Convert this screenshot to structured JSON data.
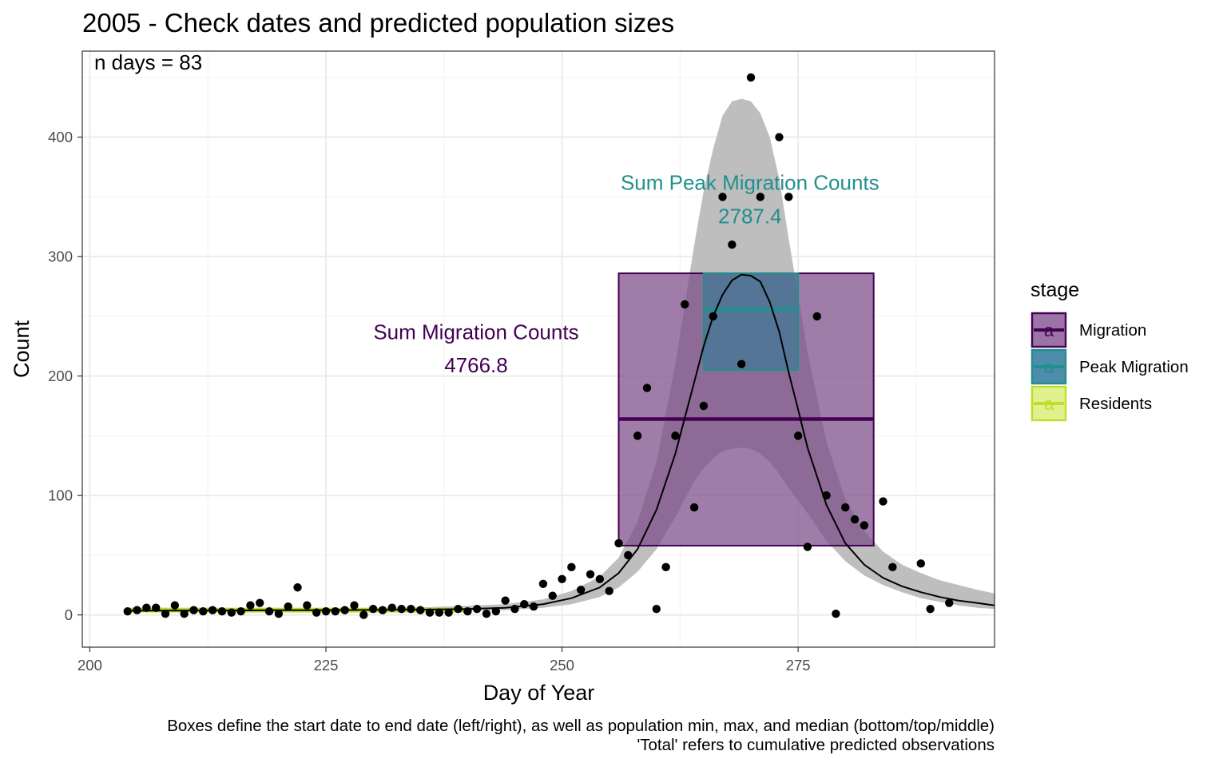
{
  "chart_data": {
    "type": "scatter",
    "title": "2005 - Check dates and predicted population sizes",
    "xlabel": "Day of Year",
    "ylabel": "Count",
    "xlim": [
      199.2,
      295.8
    ],
    "ylim": [
      -27,
      472
    ],
    "xticks": [
      200,
      225,
      250,
      275
    ],
    "yticks": [
      0,
      100,
      200,
      300,
      400
    ],
    "grid": true,
    "legend_position": "right",
    "annotation_ndays": "n days = 83",
    "caption_lines": [
      "Boxes define the start date to end date (left/right), as well as population min, max, and median (bottom/top/middle)",
      "'Total' refers to cumulative predicted observations"
    ],
    "legend": {
      "title": "stage",
      "items": [
        {
          "label": "Migration",
          "color": "#440154",
          "fill": "#9c73a6"
        },
        {
          "label": "Peak Migration",
          "color": "#21908c",
          "fill": "#4e8cab"
        },
        {
          "label": "Residents",
          "color": "#bddf26",
          "fill": "#e0f08f"
        }
      ]
    },
    "stage_boxes": [
      {
        "name": "Migration",
        "start": 256,
        "end": 283,
        "min": 58,
        "max": 286,
        "median": 164,
        "color": "#440154",
        "fill": "#7b4b87"
      },
      {
        "name": "Peak Migration",
        "start": 265,
        "end": 275,
        "min": 205,
        "max": 286,
        "median": 256,
        "color": "#21908c",
        "fill": "#3f7894"
      }
    ],
    "residents_line": {
      "start": 204,
      "end": 240,
      "value": 4,
      "color": "#bddf26"
    },
    "annotations": [
      {
        "text": "Sum Peak Migration Counts",
        "x": 269.9,
        "y": 362,
        "color": "#21908c"
      },
      {
        "text": "2787.4",
        "x": 269.9,
        "y": 334,
        "color": "#21908c"
      },
      {
        "text": "Sum Migration Counts",
        "x": 240.9,
        "y": 237,
        "color": "#440154"
      },
      {
        "text": "4766.8",
        "x": 240.9,
        "y": 209,
        "color": "#440154"
      }
    ],
    "fit_curve": {
      "x": [
        204,
        208,
        212,
        216,
        220,
        224,
        228,
        232,
        236,
        240,
        244,
        248,
        251,
        254,
        256,
        258,
        260,
        262,
        264,
        265,
        266,
        267,
        268,
        269,
        270,
        271,
        272,
        273,
        274,
        275,
        276,
        278,
        280,
        282,
        284,
        286,
        288,
        290,
        292,
        294,
        295.8
      ],
      "y": [
        3.5,
        3.6,
        3.7,
        3.8,
        3.9,
        4.0,
        4.1,
        4.3,
        4.5,
        5,
        6,
        9,
        14,
        23,
        35,
        55,
        88,
        135,
        195,
        225,
        250,
        268,
        280,
        285,
        284,
        279,
        262,
        237,
        203,
        172,
        140,
        92,
        60,
        42,
        31,
        24,
        19,
        15,
        12,
        10,
        8
      ],
      "lower": [
        2.5,
        2.6,
        2.7,
        2.8,
        2.9,
        3.0,
        3.1,
        3.2,
        3.3,
        3.5,
        4,
        6,
        9,
        15,
        23,
        36,
        55,
        82,
        112,
        123,
        131,
        137,
        139,
        140,
        139,
        135,
        128,
        118,
        106,
        96,
        85,
        62,
        45,
        33,
        25,
        19,
        14,
        11,
        8,
        6,
        5
      ],
      "upper": [
        5,
        5,
        5.1,
        5.2,
        5.4,
        5.6,
        5.8,
        6,
        6.5,
        7.5,
        9,
        13,
        20,
        32,
        48,
        78,
        128,
        210,
        310,
        355,
        390,
        418,
        430,
        432,
        430,
        420,
        400,
        365,
        315,
        268,
        220,
        145,
        97,
        70,
        53,
        42,
        35,
        29,
        25,
        21,
        18
      ]
    },
    "points": [
      {
        "x": 204,
        "y": 3
      },
      {
        "x": 205,
        "y": 4
      },
      {
        "x": 206,
        "y": 6
      },
      {
        "x": 207,
        "y": 6
      },
      {
        "x": 208,
        "y": 1
      },
      {
        "x": 209,
        "y": 8
      },
      {
        "x": 210,
        "y": 1
      },
      {
        "x": 211,
        "y": 4
      },
      {
        "x": 212,
        "y": 3
      },
      {
        "x": 213,
        "y": 4
      },
      {
        "x": 214,
        "y": 3
      },
      {
        "x": 215,
        "y": 2
      },
      {
        "x": 216,
        "y": 3
      },
      {
        "x": 217,
        "y": 8
      },
      {
        "x": 218,
        "y": 10
      },
      {
        "x": 219,
        "y": 3
      },
      {
        "x": 220,
        "y": 1
      },
      {
        "x": 221,
        "y": 7
      },
      {
        "x": 222,
        "y": 23
      },
      {
        "x": 223,
        "y": 8
      },
      {
        "x": 224,
        "y": 2
      },
      {
        "x": 225,
        "y": 3
      },
      {
        "x": 226,
        "y": 3
      },
      {
        "x": 227,
        "y": 4
      },
      {
        "x": 228,
        "y": 8
      },
      {
        "x": 229,
        "y": 0
      },
      {
        "x": 230,
        "y": 5
      },
      {
        "x": 231,
        "y": 4
      },
      {
        "x": 232,
        "y": 6
      },
      {
        "x": 233,
        "y": 5
      },
      {
        "x": 234,
        "y": 5
      },
      {
        "x": 235,
        "y": 4
      },
      {
        "x": 236,
        "y": 2
      },
      {
        "x": 237,
        "y": 2
      },
      {
        "x": 238,
        "y": 2
      },
      {
        "x": 239,
        "y": 5
      },
      {
        "x": 240,
        "y": 3
      },
      {
        "x": 241,
        "y": 5
      },
      {
        "x": 242,
        "y": 1
      },
      {
        "x": 243,
        "y": 3
      },
      {
        "x": 244,
        "y": 12
      },
      {
        "x": 245,
        "y": 5
      },
      {
        "x": 246,
        "y": 9
      },
      {
        "x": 247,
        "y": 7
      },
      {
        "x": 248,
        "y": 26
      },
      {
        "x": 249,
        "y": 16
      },
      {
        "x": 250,
        "y": 30
      },
      {
        "x": 251,
        "y": 40
      },
      {
        "x": 252,
        "y": 21
      },
      {
        "x": 253,
        "y": 34
      },
      {
        "x": 254,
        "y": 30
      },
      {
        "x": 255,
        "y": 20
      },
      {
        "x": 256,
        "y": 60
      },
      {
        "x": 257,
        "y": 50
      },
      {
        "x": 258,
        "y": 150
      },
      {
        "x": 259,
        "y": 190
      },
      {
        "x": 260,
        "y": 5
      },
      {
        "x": 261,
        "y": 40
      },
      {
        "x": 262,
        "y": 150
      },
      {
        "x": 263,
        "y": 260
      },
      {
        "x": 264,
        "y": 90
      },
      {
        "x": 265,
        "y": 175
      },
      {
        "x": 266,
        "y": 250
      },
      {
        "x": 267,
        "y": 350
      },
      {
        "x": 268,
        "y": 310
      },
      {
        "x": 269,
        "y": 210
      },
      {
        "x": 270,
        "y": 450
      },
      {
        "x": 271,
        "y": 350
      },
      {
        "x": 273,
        "y": 400
      },
      {
        "x": 274,
        "y": 350
      },
      {
        "x": 275,
        "y": 150
      },
      {
        "x": 276,
        "y": 57
      },
      {
        "x": 277,
        "y": 250
      },
      {
        "x": 278,
        "y": 100
      },
      {
        "x": 279,
        "y": 1
      },
      {
        "x": 280,
        "y": 90
      },
      {
        "x": 281,
        "y": 80
      },
      {
        "x": 282,
        "y": 75
      },
      {
        "x": 284,
        "y": 95
      },
      {
        "x": 285,
        "y": 40
      },
      {
        "x": 288,
        "y": 43
      },
      {
        "x": 289,
        "y": 5
      },
      {
        "x": 291,
        "y": 10
      }
    ]
  }
}
